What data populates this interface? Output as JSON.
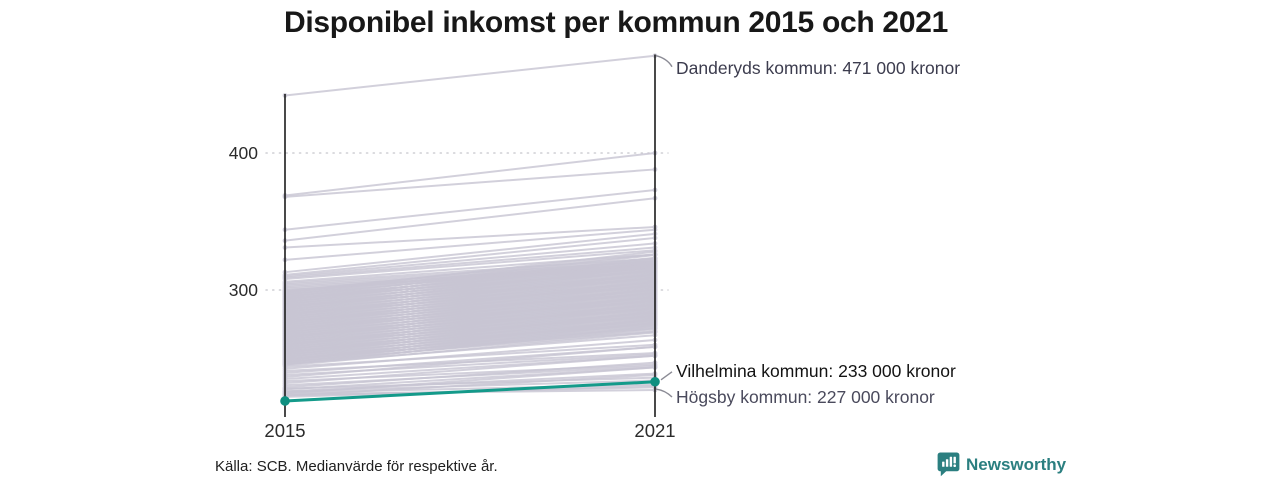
{
  "title": "Disponibel inkomst per kommun 2015 och 2021",
  "axis": {
    "y_tick_400": "400",
    "y_tick_300": "300",
    "x_tick_left": "2015",
    "x_tick_right": "2021"
  },
  "annotations": {
    "danderyd": {
      "label": "Danderyds kommun: 471 000 kronor",
      "name": "Danderyds kommun",
      "value_2021": 471
    },
    "vilhelmina": {
      "label": "Vilhelmina kommun: 233 000 kronor",
      "name": "Vilhelmina kommun",
      "value_2021": 233
    },
    "hogsby": {
      "label": "Högsby kommun: 227 000 kronor",
      "name": "Högsby kommun",
      "value_2021": 227
    }
  },
  "footer": {
    "source": "Källa: SCB. Medianvärde för respektive år."
  },
  "branding": {
    "name": "Newsworthy",
    "color": "#2b7f80"
  },
  "colors": {
    "background_line": "#c8c5d3",
    "highlight_line": "#149a8a",
    "highlight_dot": "#0f8f80",
    "axis": "#1c1c1c",
    "gridline": "#cfcfd4",
    "leader": "#8b8b95"
  },
  "chart_data": {
    "type": "line",
    "subtype": "slope",
    "x": [
      2015,
      2021
    ],
    "y_unit": "000 kronor",
    "yticks": [
      300,
      400
    ],
    "ylim": [
      219,
      471
    ],
    "grid": "dotted horizontal gridlines at yticks",
    "legend": "none",
    "highlighted": {
      "name": "Vilhelmina kommun",
      "values": [
        219,
        233
      ]
    },
    "labeled_gray": [
      {
        "name": "Danderyds kommun",
        "values": [
          442,
          471
        ]
      },
      {
        "name": "Högsby kommun",
        "values": [
          224,
          227
        ]
      }
    ],
    "background_lines": [
      [
        369,
        400
      ],
      [
        368,
        388
      ],
      [
        344,
        373
      ],
      [
        336,
        367
      ],
      [
        331,
        346
      ],
      [
        322,
        344
      ],
      [
        313,
        341
      ],
      [
        311,
        338
      ],
      [
        310,
        334
      ],
      [
        309,
        331
      ],
      [
        308,
        329
      ],
      [
        306,
        326
      ],
      [
        305,
        323
      ],
      [
        304,
        321
      ],
      [
        303,
        319
      ],
      [
        302,
        318
      ],
      [
        301,
        317
      ],
      [
        300,
        316
      ],
      [
        299.5,
        319.5
      ],
      [
        299,
        326
      ],
      [
        298.5,
        321.5
      ],
      [
        298,
        328
      ],
      [
        297.5,
        323.5
      ],
      [
        297,
        319
      ],
      [
        296.5,
        325.5
      ],
      [
        296,
        321
      ],
      [
        295.5,
        316.5
      ],
      [
        295,
        323
      ],
      [
        294.5,
        318.5
      ],
      [
        294,
        314
      ],
      [
        293.5,
        320.5
      ],
      [
        293,
        316
      ],
      [
        292.5,
        322.5
      ],
      [
        292,
        318
      ],
      [
        291.5,
        313.5
      ],
      [
        291,
        320
      ],
      [
        290.5,
        315.5
      ],
      [
        290,
        311
      ],
      [
        289.5,
        317.5
      ],
      [
        289,
        313
      ],
      [
        288.5,
        308.5
      ],
      [
        288,
        315
      ],
      [
        287.5,
        310.5
      ],
      [
        287,
        317
      ],
      [
        286.5,
        312.5
      ],
      [
        286,
        308
      ],
      [
        285.5,
        314.5
      ],
      [
        285,
        310
      ],
      [
        284.5,
        305.5
      ],
      [
        284,
        312
      ],
      [
        283.5,
        307.5
      ],
      [
        283,
        303
      ],
      [
        282.5,
        309.5
      ],
      [
        282,
        305
      ],
      [
        281.5,
        311.5
      ],
      [
        281,
        307
      ],
      [
        280.5,
        302.5
      ],
      [
        280,
        309
      ],
      [
        279.5,
        304.5
      ],
      [
        279,
        300
      ],
      [
        278.5,
        306.5
      ],
      [
        278,
        302
      ],
      [
        277.5,
        297.5
      ],
      [
        277,
        304
      ],
      [
        276.5,
        299.5
      ],
      [
        276,
        306
      ],
      [
        275.5,
        301.5
      ],
      [
        275,
        297
      ],
      [
        274.5,
        303.5
      ],
      [
        274,
        299
      ],
      [
        273.5,
        294.5
      ],
      [
        273,
        301
      ],
      [
        272.5,
        296.5
      ],
      [
        272,
        292
      ],
      [
        271.5,
        298.5
      ],
      [
        271,
        294
      ],
      [
        270.5,
        300.5
      ],
      [
        270,
        296
      ],
      [
        269.5,
        291.5
      ],
      [
        269,
        298
      ],
      [
        268.5,
        293.5
      ],
      [
        268,
        289
      ],
      [
        267.5,
        295.5
      ],
      [
        267,
        291
      ],
      [
        266.5,
        286.5
      ],
      [
        266,
        293
      ],
      [
        265.5,
        288.5
      ],
      [
        265,
        295
      ],
      [
        264.5,
        290.5
      ],
      [
        264,
        286
      ],
      [
        263.5,
        292.5
      ],
      [
        263,
        288
      ],
      [
        262.5,
        283.5
      ],
      [
        262,
        290
      ],
      [
        261.5,
        285.5
      ],
      [
        261,
        281
      ],
      [
        260.5,
        287.5
      ],
      [
        260,
        283
      ],
      [
        259.5,
        289.5
      ],
      [
        259,
        285
      ],
      [
        258.5,
        280.5
      ],
      [
        258,
        287
      ],
      [
        257.5,
        282.5
      ],
      [
        257,
        278
      ],
      [
        256.5,
        284.5
      ],
      [
        256,
        280
      ],
      [
        255.5,
        275.5
      ],
      [
        255,
        282
      ],
      [
        254.5,
        277.5
      ],
      [
        254,
        284
      ],
      [
        253.5,
        279.5
      ],
      [
        253,
        275
      ],
      [
        252.5,
        281.5
      ],
      [
        252,
        277
      ],
      [
        251.5,
        272.5
      ],
      [
        251,
        279
      ],
      [
        250.5,
        274.5
      ],
      [
        250,
        270
      ],
      [
        249.5,
        276.5
      ],
      [
        249,
        272
      ],
      [
        248.5,
        278.5
      ],
      [
        248,
        274
      ],
      [
        247.5,
        269.5
      ],
      [
        247,
        276
      ],
      [
        246.5,
        271.5
      ],
      [
        246,
        267
      ],
      [
        245.5,
        273.5
      ],
      [
        245,
        269
      ],
      [
        244,
        260
      ],
      [
        242.5,
        263.5
      ],
      [
        241,
        254
      ],
      [
        239.5,
        258.5
      ],
      [
        238,
        253
      ],
      [
        236.5,
        258.5
      ],
      [
        235,
        252
      ],
      [
        233.5,
        245.5
      ],
      [
        232,
        252
      ],
      [
        230.5,
        244.5
      ],
      [
        229,
        247
      ],
      [
        227.5,
        243.5
      ],
      [
        226,
        239
      ],
      [
        224.5,
        243.5
      ],
      [
        223,
        238
      ],
      [
        228,
        236
      ],
      [
        226,
        234
      ],
      [
        225,
        231
      ],
      [
        223,
        229
      ],
      [
        222,
        230
      ]
    ]
  }
}
